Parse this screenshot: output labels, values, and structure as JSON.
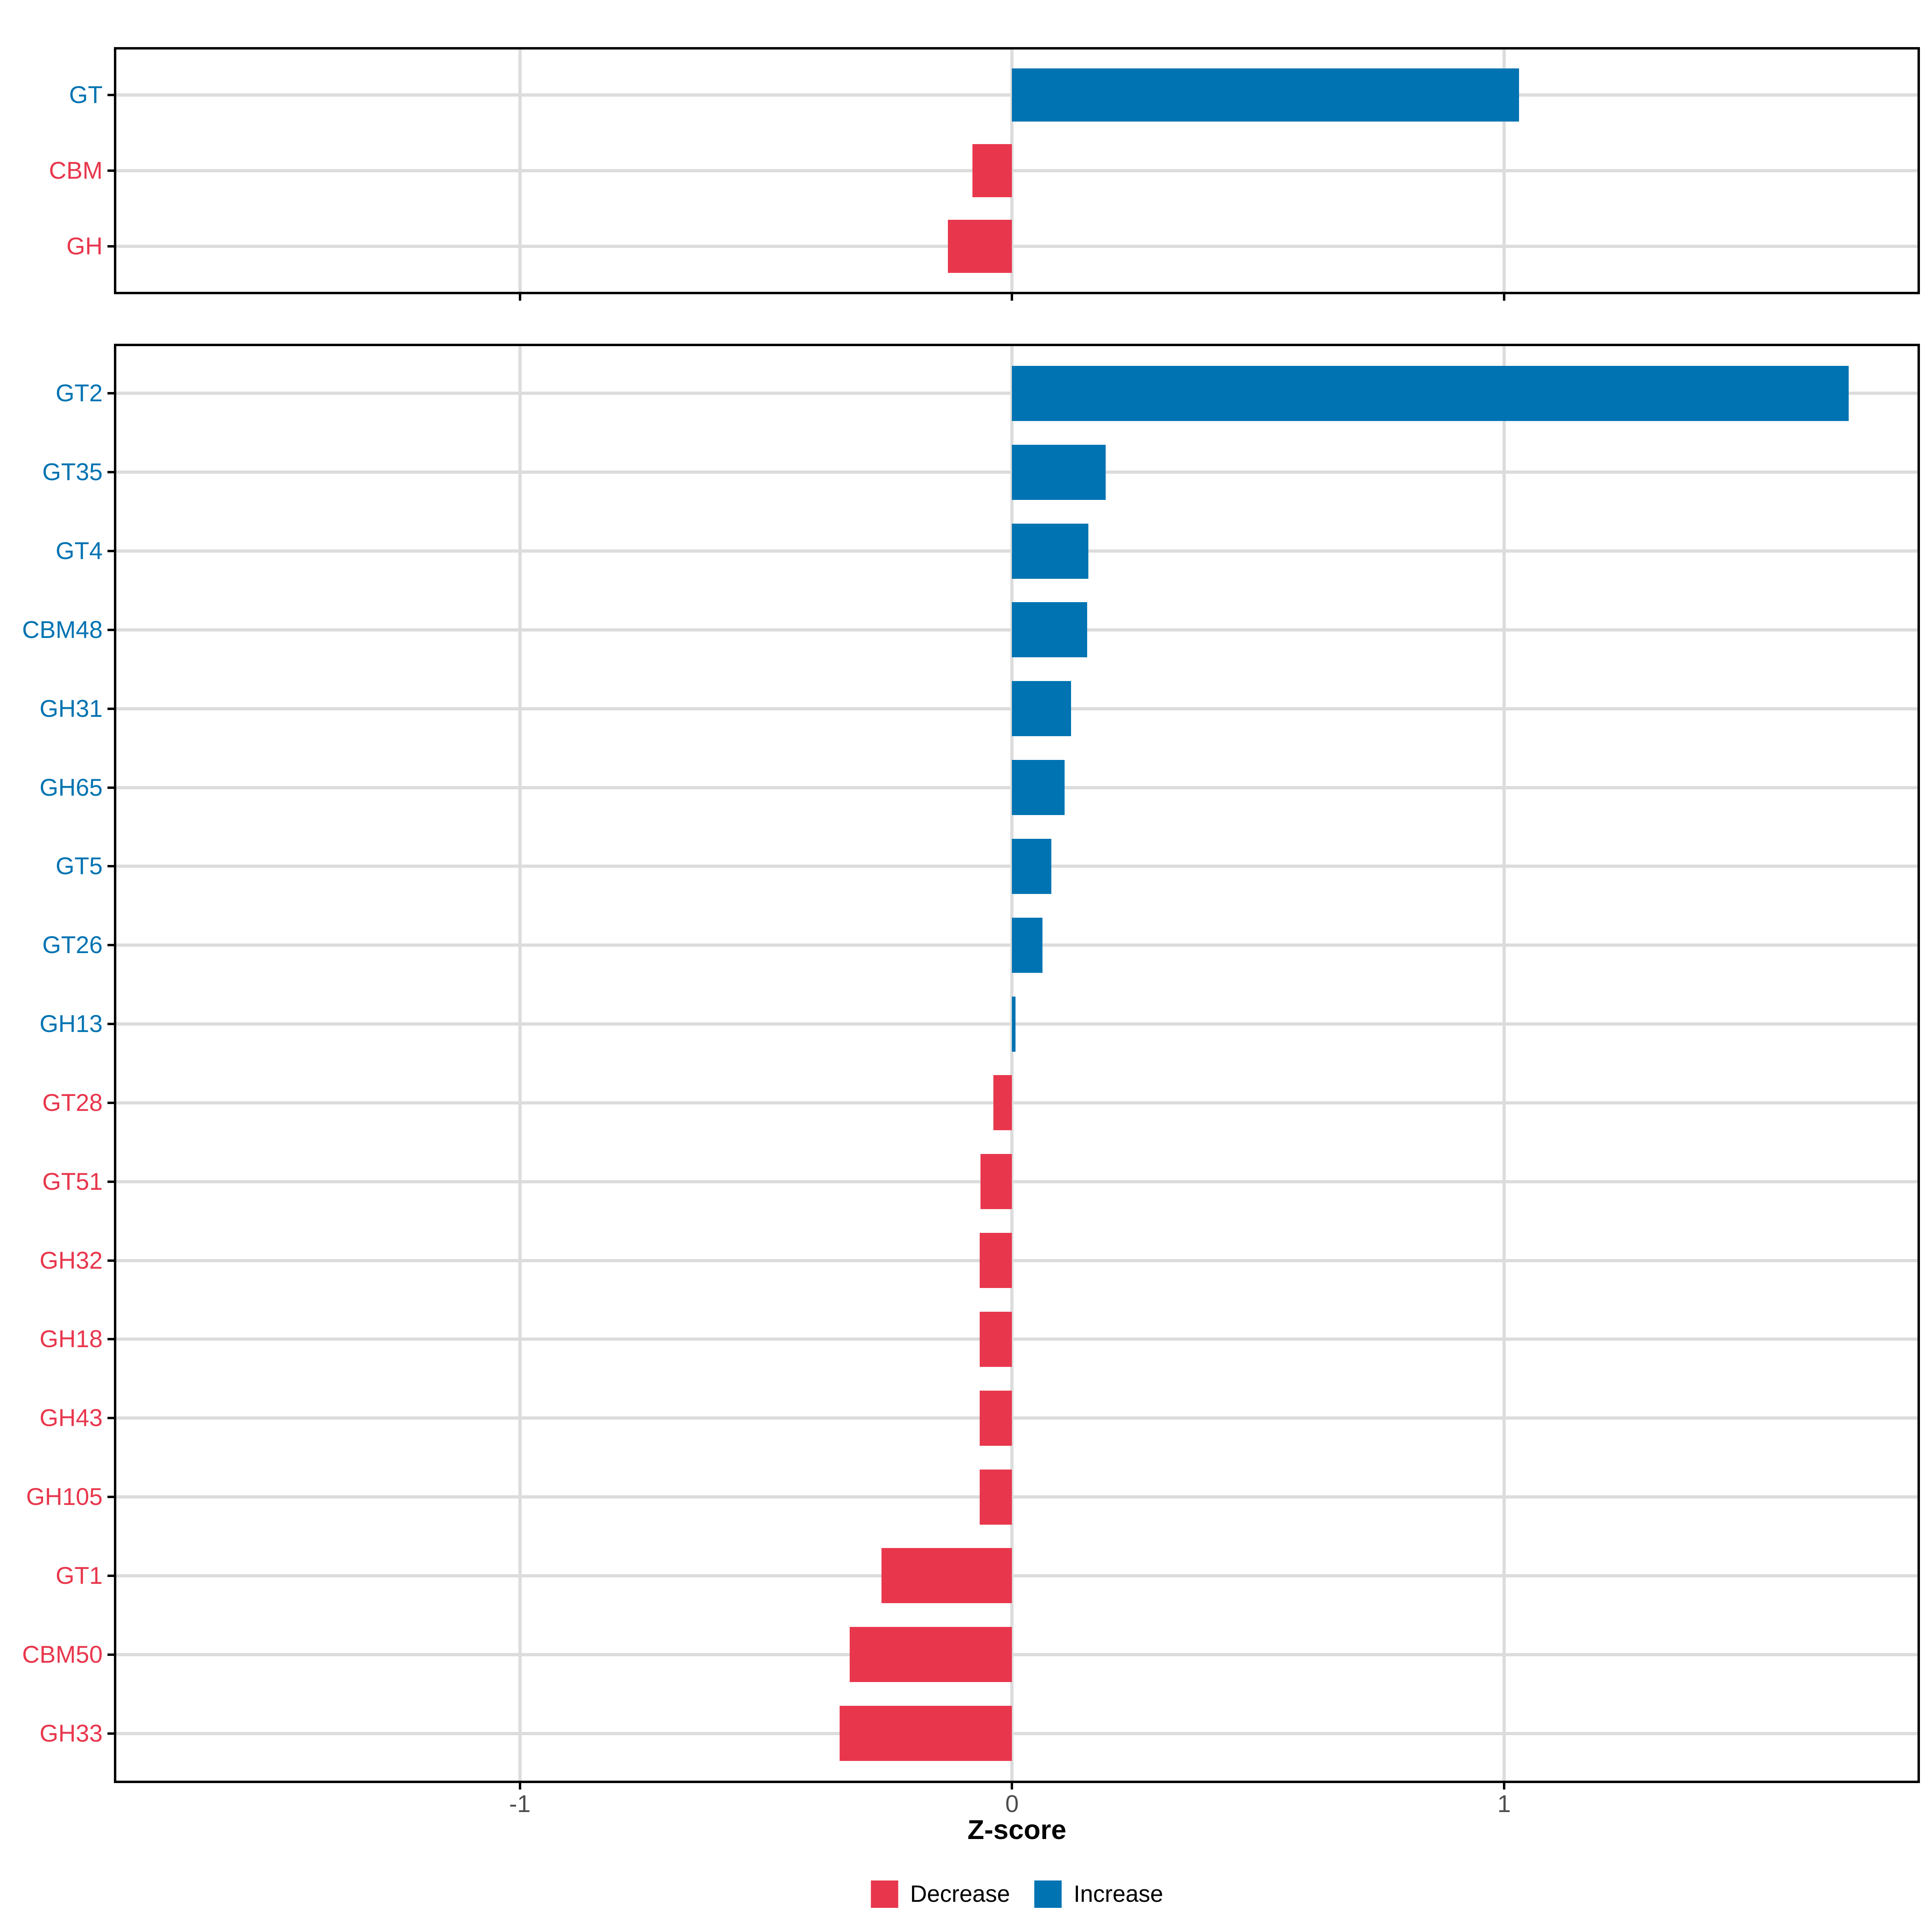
{
  "chart_data": [
    {
      "type": "bar",
      "orientation": "horizontal",
      "panel": "cazyme-classes",
      "categories": [
        "GT",
        "CBM",
        "GH"
      ],
      "values": [
        1.03,
        -0.08,
        -0.13
      ],
      "direction": [
        "Increase",
        "Decrease",
        "Decrease"
      ],
      "xlabel": "Z-score",
      "xlim": [
        -1.82,
        1.84
      ],
      "grid": true
    },
    {
      "type": "bar",
      "orientation": "horizontal",
      "panel": "cazyme-families",
      "categories": [
        "GT2",
        "GT35",
        "GT4",
        "CBM48",
        "GH31",
        "GH65",
        "GT5",
        "GT26",
        "GH13",
        "GT28",
        "GT51",
        "GH32",
        "GH18",
        "GH43",
        "GH105",
        "GT1",
        "CBM50",
        "GH33"
      ],
      "values": [
        1.7,
        0.19,
        0.155,
        0.153,
        0.12,
        0.107,
        0.08,
        0.062,
        0.007,
        -0.038,
        -0.064,
        -0.066,
        -0.066,
        -0.066,
        -0.066,
        -0.265,
        -0.33,
        -0.35
      ],
      "direction": [
        "Increase",
        "Increase",
        "Increase",
        "Increase",
        "Increase",
        "Increase",
        "Increase",
        "Increase",
        "Increase",
        "Decrease",
        "Decrease",
        "Decrease",
        "Decrease",
        "Decrease",
        "Decrease",
        "Decrease",
        "Decrease",
        "Decrease"
      ],
      "xlabel": "Z-score",
      "xlim": [
        -1.82,
        1.84
      ],
      "grid": true
    }
  ],
  "axis": {
    "title": "Z-score",
    "tick_labels": [
      "-1",
      "0",
      "1"
    ],
    "tick_values": [
      -1,
      0,
      1
    ]
  },
  "legend": {
    "position": "bottom-center",
    "items": [
      {
        "label": "Decrease",
        "color": "#E8374D"
      },
      {
        "label": "Increase",
        "color": "#0073B2"
      }
    ]
  },
  "colors": {
    "increase": "#0073B2",
    "decrease": "#E8374D",
    "gridline": "#DCDCDC",
    "axis_text": "#4D4D4D",
    "panel_border": "#000000",
    "background": "#FFFFFF"
  }
}
